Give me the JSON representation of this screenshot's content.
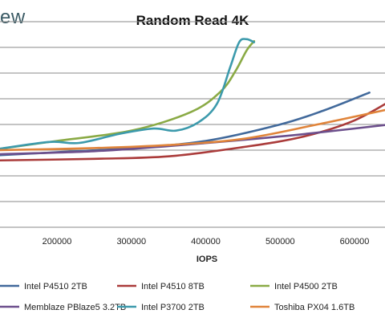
{
  "brand_text": "ew",
  "chart_data": {
    "type": "line",
    "title": "Random Read 4K",
    "xlabel": "IOPS",
    "ylabel": "",
    "x_ticks": [
      200000,
      300000,
      400000,
      500000,
      600000
    ],
    "x_tick_labels": [
      "200000",
      "300000",
      "400000",
      "500000",
      "600000"
    ],
    "xlim": [
      120000,
      660000
    ],
    "y_gridlines": 9,
    "ylim": [
      0,
      1
    ],
    "grid": true,
    "legend_position": "bottom",
    "series": [
      {
        "name": "Intel P4510 2TB",
        "color": "#41699b",
        "points": [
          [
            120000,
            0.35
          ],
          [
            200000,
            0.365
          ],
          [
            300000,
            0.385
          ],
          [
            400000,
            0.42
          ],
          [
            500000,
            0.5
          ],
          [
            560000,
            0.57
          ],
          [
            620000,
            0.655
          ]
        ]
      },
      {
        "name": "Intel P4510 8TB",
        "color": "#aa3b3a",
        "points": [
          [
            120000,
            0.325
          ],
          [
            250000,
            0.333
          ],
          [
            350000,
            0.345
          ],
          [
            450000,
            0.39
          ],
          [
            530000,
            0.44
          ],
          [
            600000,
            0.52
          ],
          [
            660000,
            0.64
          ]
        ]
      },
      {
        "name": "Intel P4500 2TB",
        "color": "#8aaa45",
        "points": [
          [
            120000,
            0.38
          ],
          [
            200000,
            0.42
          ],
          [
            300000,
            0.47
          ],
          [
            380000,
            0.56
          ],
          [
            420000,
            0.66
          ],
          [
            440000,
            0.76
          ],
          [
            455000,
            0.86
          ],
          [
            465000,
            0.905
          ]
        ]
      },
      {
        "name": "Memblaze PBlaze5 3.2TB",
        "color": "#6c4f8c",
        "points": [
          [
            120000,
            0.355
          ],
          [
            250000,
            0.37
          ],
          [
            350000,
            0.395
          ],
          [
            450000,
            0.425
          ],
          [
            550000,
            0.46
          ],
          [
            660000,
            0.505
          ]
        ]
      },
      {
        "name": "Intel P3700 2TB",
        "color": "#3c9aac",
        "points": [
          [
            120000,
            0.38
          ],
          [
            190000,
            0.415
          ],
          [
            230000,
            0.41
          ],
          [
            285000,
            0.455
          ],
          [
            330000,
            0.48
          ],
          [
            360000,
            0.47
          ],
          [
            390000,
            0.51
          ],
          [
            415000,
            0.6
          ],
          [
            433000,
            0.78
          ],
          [
            445000,
            0.9
          ],
          [
            455000,
            0.915
          ],
          [
            465000,
            0.9
          ]
        ]
      },
      {
        "name": "Toshiba PX04 1.6TB",
        "color": "#e0843a",
        "points": [
          [
            120000,
            0.375
          ],
          [
            250000,
            0.385
          ],
          [
            350000,
            0.4
          ],
          [
            450000,
            0.43
          ],
          [
            550000,
            0.5
          ],
          [
            660000,
            0.585
          ]
        ]
      }
    ]
  }
}
